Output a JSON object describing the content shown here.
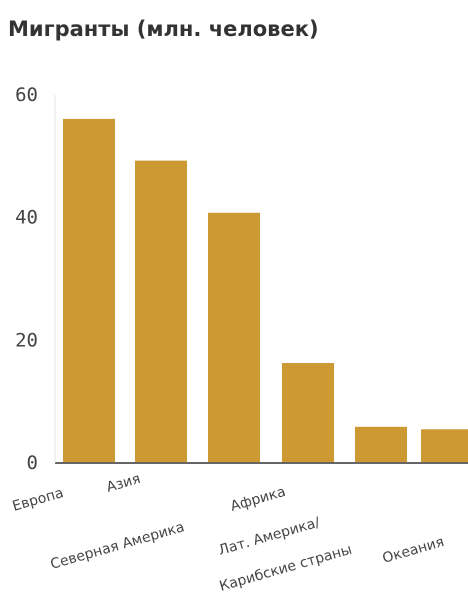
{
  "chart_data": {
    "type": "bar",
    "title": "",
    "subtitle": "Мигранты (млн. человек)",
    "xlabel": "",
    "ylabel": "",
    "categories": [
      [
        "Европа"
      ],
      [
        "Азия"
      ],
      [
        "Северная Америка"
      ],
      [
        "Африка"
      ],
      [
        "Лат. Америка/",
        "Карибские страны"
      ],
      [
        "Океания"
      ]
    ],
    "values": [
      56.1,
      49.3,
      40.8,
      16.3,
      5.9,
      5.5
    ],
    "y_ticks": [
      0,
      20,
      40,
      60
    ],
    "ylim": [
      0,
      60
    ],
    "grid": false,
    "colors": {
      "bar": "#cc9933",
      "axis": "#666666",
      "text": "#444444",
      "title": "#333333"
    }
  }
}
